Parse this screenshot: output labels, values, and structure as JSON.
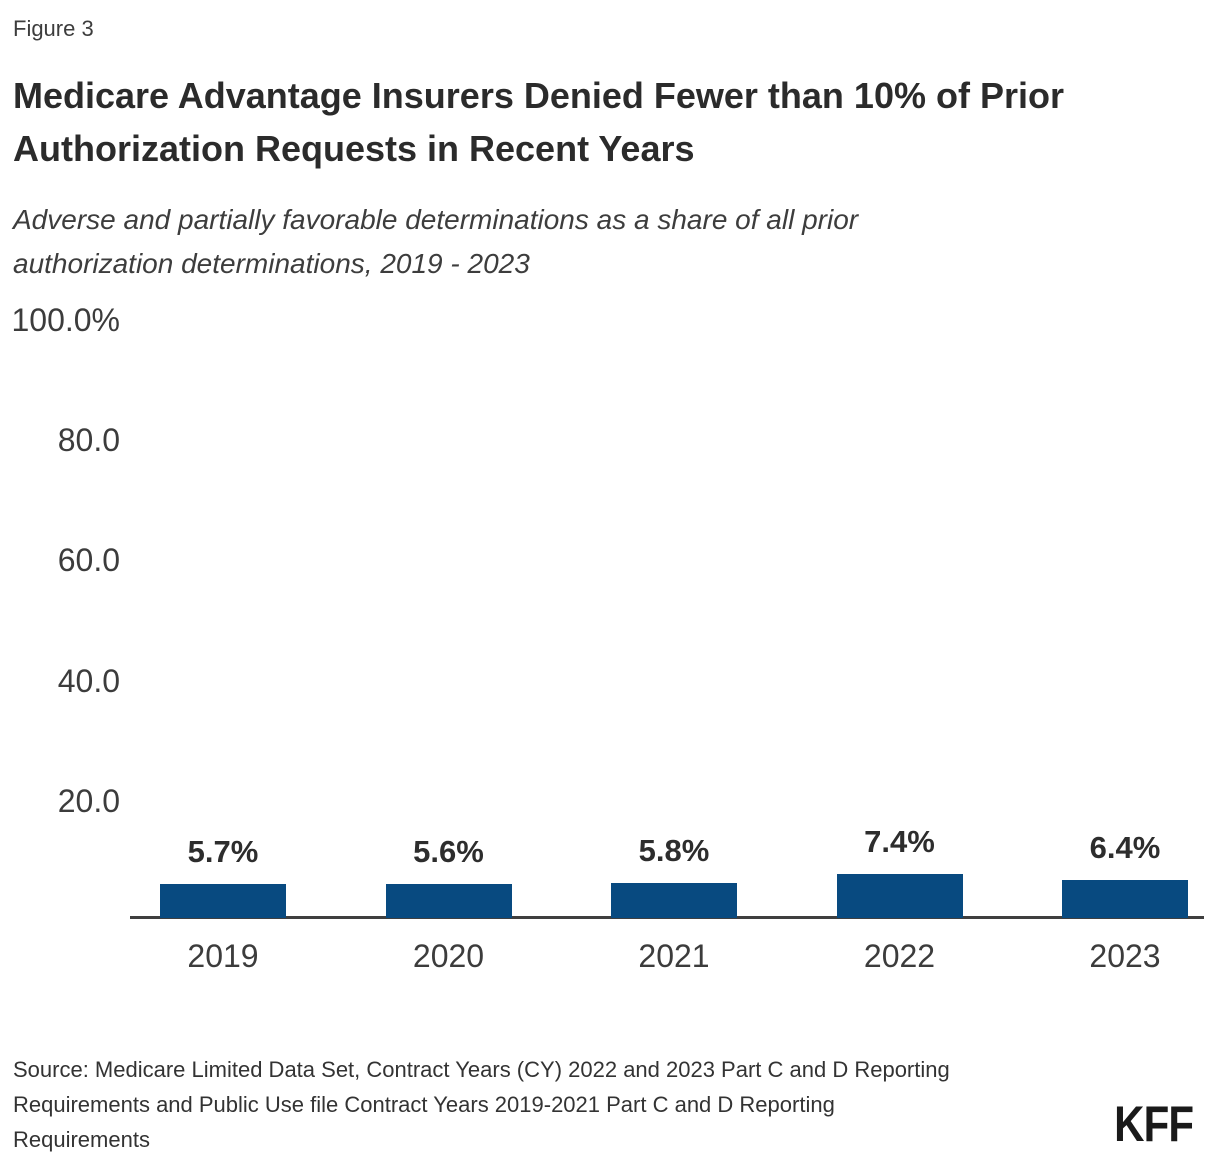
{
  "figure": {
    "label": "Figure 3"
  },
  "header": {
    "title_lines": [
      "Medicare Advantage Insurers Denied Fewer than 10% of Prior",
      "Authorization Requests in Recent Years"
    ],
    "subtitle_lines": [
      "Adverse and partially favorable determinations as a share of all prior",
      "authorization determinations, 2019 - 2023"
    ]
  },
  "chart_data": {
    "type": "bar",
    "title": "Medicare Advantage Insurers Denied Fewer than 10% of Prior Authorization Requests in Recent Years",
    "subtitle": "Adverse and partially favorable determinations as a share of all prior authorization determinations, 2019 - 2023",
    "categories": [
      "2019",
      "2020",
      "2021",
      "2022",
      "2023"
    ],
    "values": [
      5.7,
      5.6,
      5.8,
      7.4,
      6.4
    ],
    "value_labels": [
      "5.7%",
      "5.6%",
      "5.8%",
      "7.4%",
      "6.4%"
    ],
    "xlabel": "",
    "ylabel": "",
    "ylim": [
      0,
      100
    ],
    "yticks": [
      {
        "value": 100,
        "label": "100.0%"
      },
      {
        "value": 80,
        "label": "80.0"
      },
      {
        "value": 60,
        "label": "60.0"
      },
      {
        "value": 40,
        "label": "40.0"
      },
      {
        "value": 20,
        "label": "20.0"
      }
    ],
    "grid": false,
    "legend": false,
    "bar_color": "#084A80",
    "axis_color": "#3F3F3F"
  },
  "footer": {
    "source_lines": [
      "Source: Medicare Limited Data Set, Contract Years (CY) 2022 and 2023 Part C and D Reporting",
      "Requirements and Public Use file Contract Years 2019-2021 Part C and D Reporting",
      "Requirements"
    ],
    "logo_text": "KFF"
  }
}
